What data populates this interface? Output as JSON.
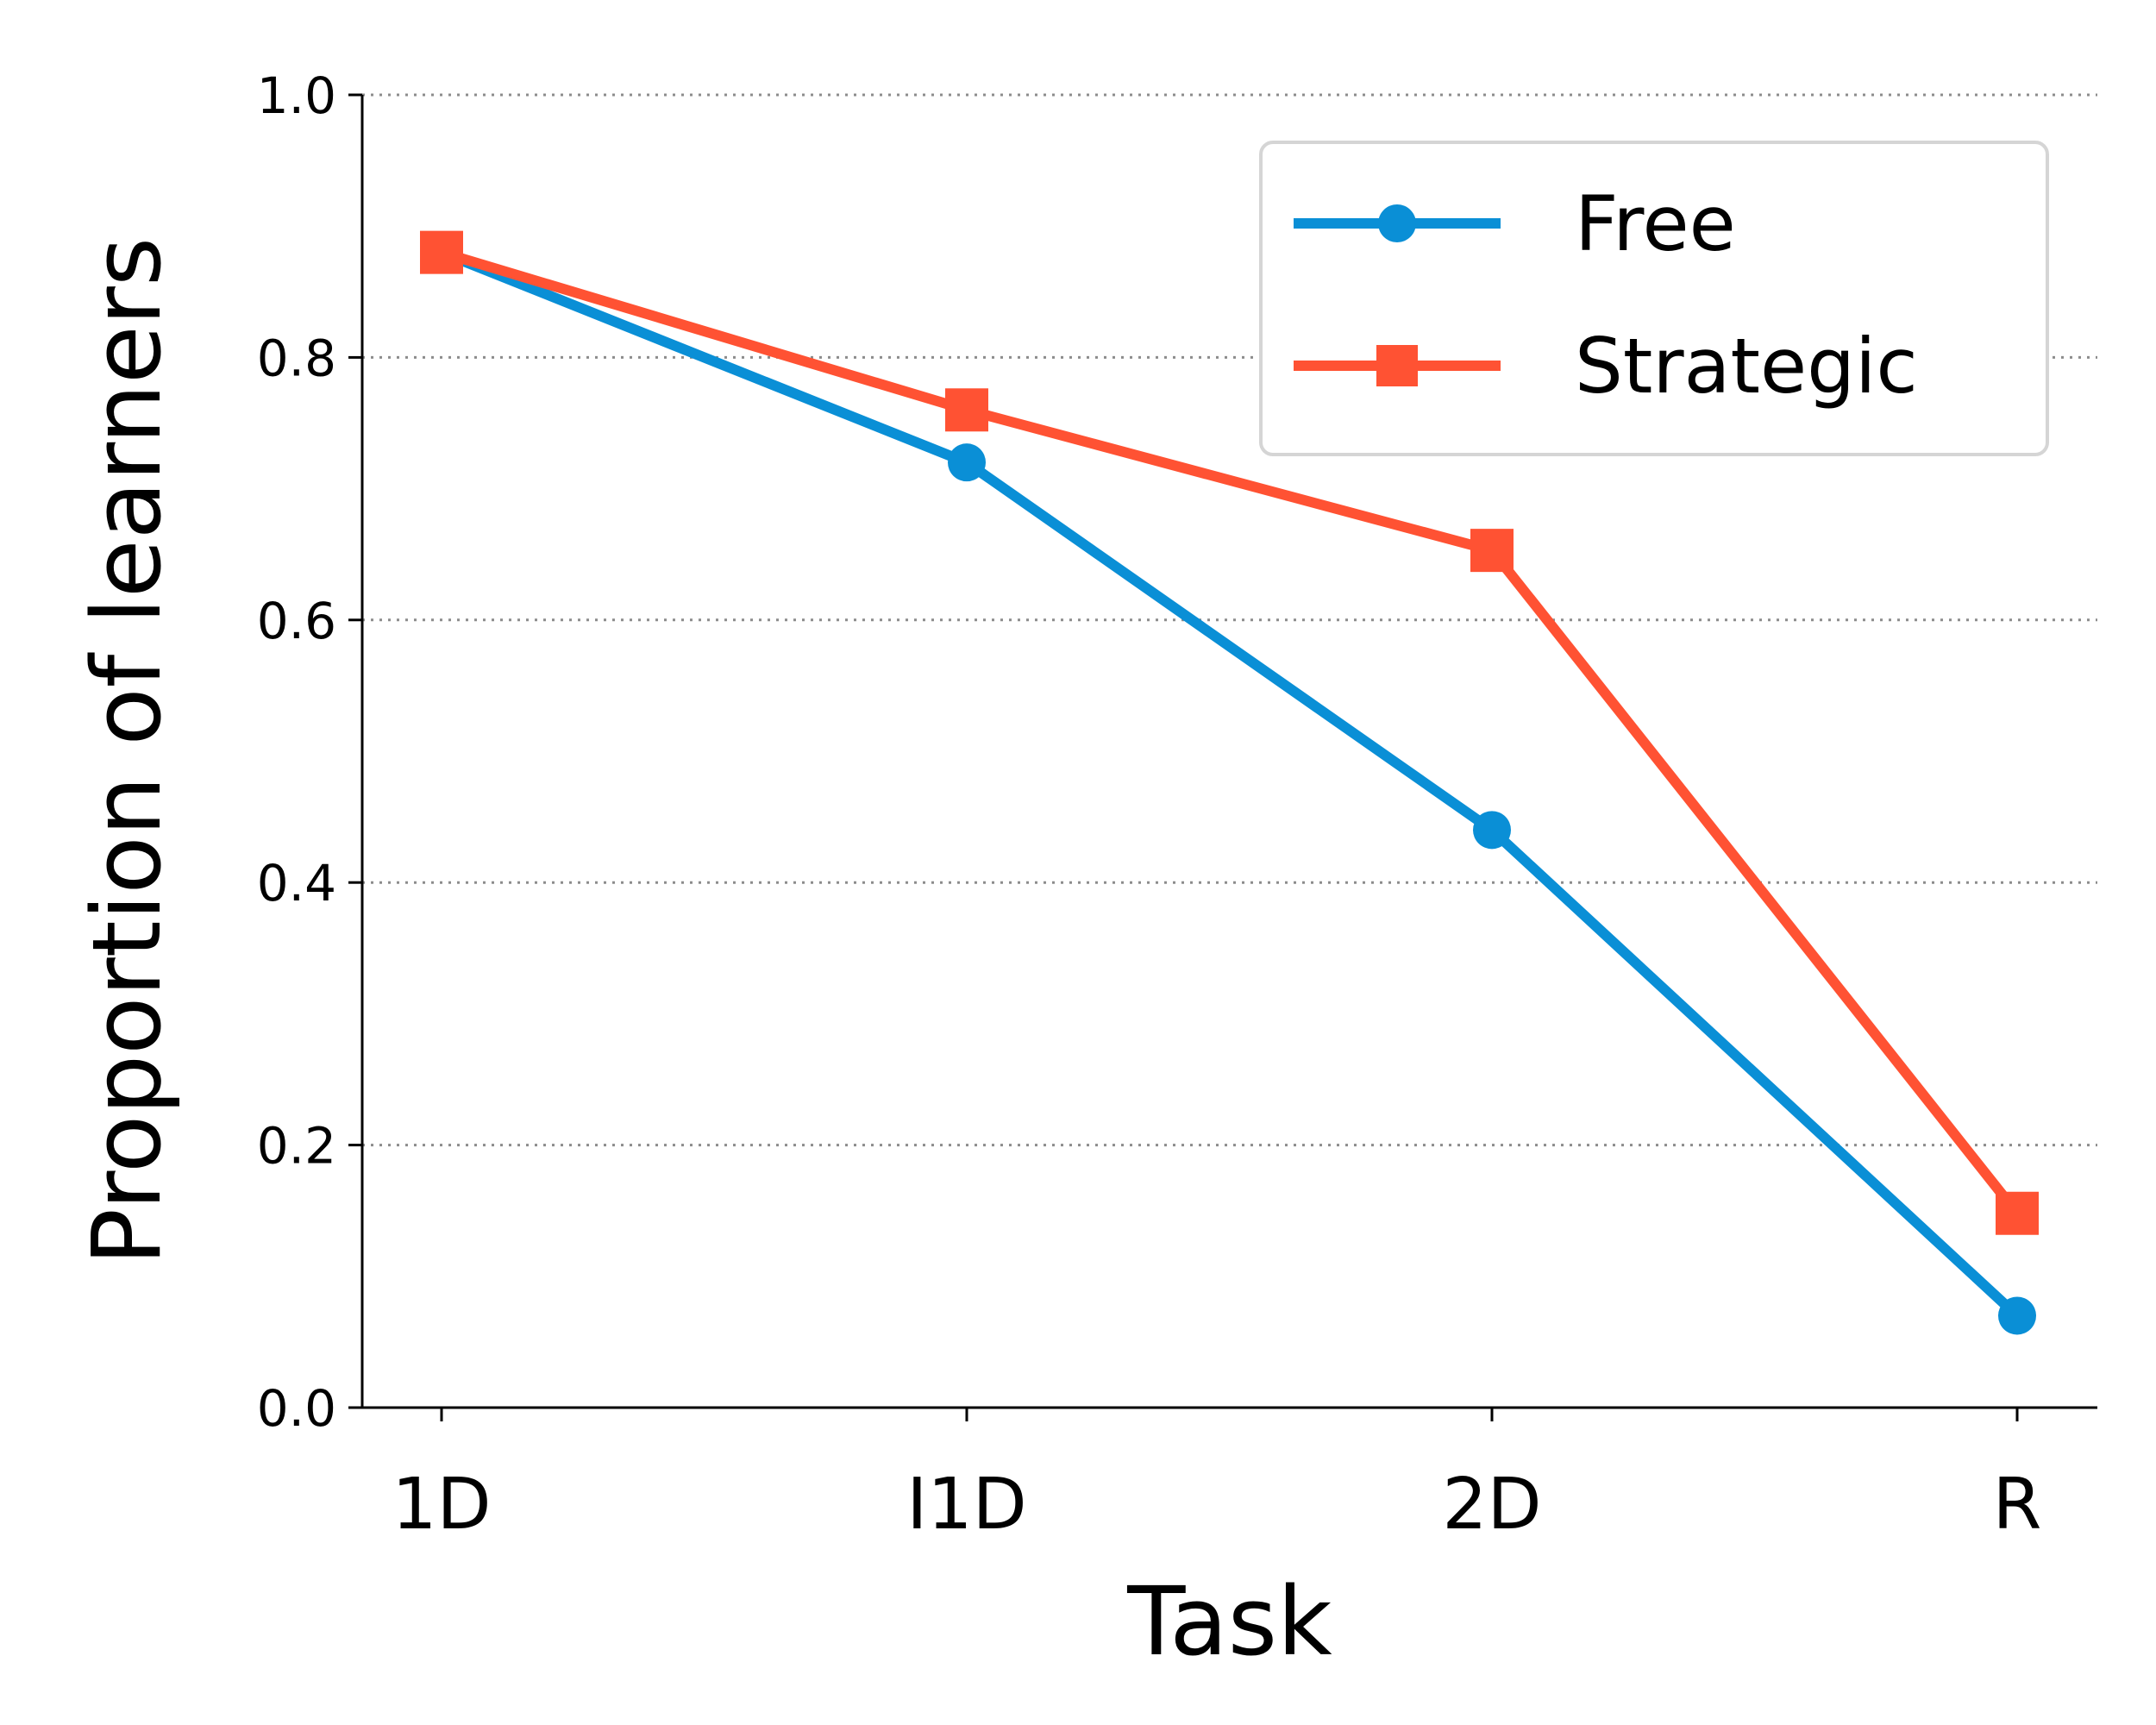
{
  "chart_data": {
    "type": "line",
    "xlabel": "Task",
    "ylabel": "Proportion of learners",
    "categories": [
      "1D",
      "I1D",
      "2D",
      "R"
    ],
    "ylim": [
      0.0,
      1.0
    ],
    "yticks": [
      "0.0",
      "0.2",
      "0.4",
      "0.6",
      "0.8",
      "1.0"
    ],
    "grid": "horizontal dotted",
    "legend_position": "top-right",
    "series": [
      {
        "name": "Free",
        "color": "#0a8fd6",
        "marker": "circle",
        "values": [
          0.88,
          0.72,
          0.44,
          0.07
        ]
      },
      {
        "name": "Strategic",
        "color": "#ff5233",
        "marker": "square",
        "values": [
          0.88,
          0.76,
          0.653,
          0.148
        ]
      }
    ]
  }
}
